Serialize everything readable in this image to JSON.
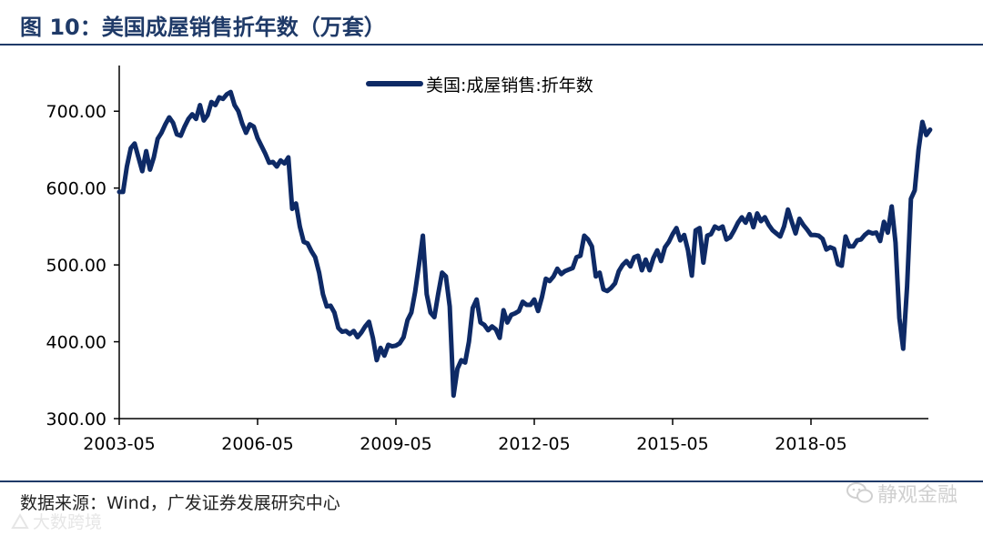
{
  "header": {
    "figure_title": "图 10：美国成屋销售折年数（万套）"
  },
  "footer": {
    "source": "数据来源：Wind，广发证券发展研究中心"
  },
  "watermarks": {
    "right_text": "静观金融",
    "right_icon": "wechat-icon",
    "left_text": "大数跨境",
    "left_icon": "logo-icon"
  },
  "colors": {
    "series": "#0e2a66",
    "title": "#1f3a68",
    "axis": "#000000"
  },
  "chart_data": {
    "type": "line",
    "title": "",
    "xlabel": "",
    "ylabel": "",
    "ylim": [
      300,
      750
    ],
    "y_ticks": [
      "300.00",
      "400.00",
      "500.00",
      "600.00",
      "700.00"
    ],
    "x_tick_labels": [
      "2003-05",
      "2006-05",
      "2009-05",
      "2012-05",
      "2015-05",
      "2018-05"
    ],
    "legend": "top-center",
    "grid": false,
    "series": [
      {
        "name": "美国:成屋销售:折年数",
        "x_start": "2003-05",
        "x_end": "2020-12",
        "frequency": "monthly",
        "points": [
          [
            "2003-05",
            595
          ],
          [
            "2003-06",
            595
          ],
          [
            "2003-07",
            628
          ],
          [
            "2003-08",
            652
          ],
          [
            "2003-09",
            658
          ],
          [
            "2003-10",
            640
          ],
          [
            "2003-11",
            622
          ],
          [
            "2003-12",
            648
          ],
          [
            "2004-01",
            624
          ],
          [
            "2004-02",
            640
          ],
          [
            "2004-03",
            664
          ],
          [
            "2004-04",
            672
          ],
          [
            "2004-05",
            683
          ],
          [
            "2004-06",
            692
          ],
          [
            "2004-07",
            685
          ],
          [
            "2004-08",
            670
          ],
          [
            "2004-09",
            668
          ],
          [
            "2004-10",
            680
          ],
          [
            "2004-11",
            690
          ],
          [
            "2004-12",
            696
          ],
          [
            "2005-01",
            690
          ],
          [
            "2005-02",
            708
          ],
          [
            "2005-03",
            688
          ],
          [
            "2005-04",
            695
          ],
          [
            "2005-05",
            712
          ],
          [
            "2005-06",
            708
          ],
          [
            "2005-07",
            718
          ],
          [
            "2005-08",
            716
          ],
          [
            "2005-09",
            722
          ],
          [
            "2005-10",
            725
          ],
          [
            "2005-11",
            708
          ],
          [
            "2005-12",
            700
          ],
          [
            "2006-01",
            684
          ],
          [
            "2006-02",
            672
          ],
          [
            "2006-03",
            683
          ],
          [
            "2006-04",
            680
          ],
          [
            "2006-05",
            665
          ],
          [
            "2006-06",
            655
          ],
          [
            "2006-07",
            645
          ],
          [
            "2006-08",
            633
          ],
          [
            "2006-09",
            634
          ],
          [
            "2006-10",
            628
          ],
          [
            "2006-11",
            636
          ],
          [
            "2006-12",
            632
          ],
          [
            "2007-01",
            640
          ],
          [
            "2007-02",
            573
          ],
          [
            "2007-03",
            580
          ],
          [
            "2007-04",
            550
          ],
          [
            "2007-05",
            530
          ],
          [
            "2007-06",
            528
          ],
          [
            "2007-07",
            518
          ],
          [
            "2007-08",
            510
          ],
          [
            "2007-09",
            490
          ],
          [
            "2007-10",
            462
          ],
          [
            "2007-11",
            446
          ],
          [
            "2007-12",
            447
          ],
          [
            "2008-01",
            438
          ],
          [
            "2008-02",
            418
          ],
          [
            "2008-03",
            413
          ],
          [
            "2008-04",
            414
          ],
          [
            "2008-05",
            410
          ],
          [
            "2008-06",
            414
          ],
          [
            "2008-07",
            406
          ],
          [
            "2008-08",
            412
          ],
          [
            "2008-09",
            420
          ],
          [
            "2008-10",
            426
          ],
          [
            "2008-11",
            405
          ],
          [
            "2008-12",
            376
          ],
          [
            "2009-01",
            392
          ],
          [
            "2009-02",
            382
          ],
          [
            "2009-03",
            396
          ],
          [
            "2009-04",
            394
          ],
          [
            "2009-05",
            395
          ],
          [
            "2009-06",
            398
          ],
          [
            "2009-07",
            406
          ],
          [
            "2009-08",
            428
          ],
          [
            "2009-09",
            438
          ],
          [
            "2009-10",
            465
          ],
          [
            "2009-11",
            500
          ],
          [
            "2009-12",
            538
          ],
          [
            "2010-01",
            462
          ],
          [
            "2010-02",
            438
          ],
          [
            "2010-03",
            432
          ],
          [
            "2010-04",
            462
          ],
          [
            "2010-05",
            490
          ],
          [
            "2010-06",
            485
          ],
          [
            "2010-07",
            446
          ],
          [
            "2010-08",
            330
          ],
          [
            "2010-09",
            365
          ],
          [
            "2010-10",
            376
          ],
          [
            "2010-11",
            373
          ],
          [
            "2010-12",
            400
          ],
          [
            "2011-01",
            444
          ],
          [
            "2011-02",
            455
          ],
          [
            "2011-03",
            425
          ],
          [
            "2011-04",
            422
          ],
          [
            "2011-05",
            415
          ],
          [
            "2011-06",
            420
          ],
          [
            "2011-07",
            416
          ],
          [
            "2011-08",
            405
          ],
          [
            "2011-09",
            441
          ],
          [
            "2011-10",
            425
          ],
          [
            "2011-11",
            435
          ],
          [
            "2011-12",
            437
          ],
          [
            "2012-01",
            440
          ],
          [
            "2012-02",
            452
          ],
          [
            "2012-03",
            448
          ],
          [
            "2012-04",
            448
          ],
          [
            "2012-05",
            455
          ],
          [
            "2012-06",
            440
          ],
          [
            "2012-07",
            458
          ],
          [
            "2012-08",
            482
          ],
          [
            "2012-09",
            479
          ],
          [
            "2012-10",
            485
          ],
          [
            "2012-11",
            495
          ],
          [
            "2012-12",
            488
          ],
          [
            "2013-01",
            492
          ],
          [
            "2013-02",
            494
          ],
          [
            "2013-03",
            496
          ],
          [
            "2013-04",
            510
          ],
          [
            "2013-05",
            512
          ],
          [
            "2013-06",
            538
          ],
          [
            "2013-07",
            533
          ],
          [
            "2013-08",
            524
          ],
          [
            "2013-09",
            485
          ],
          [
            "2013-10",
            490
          ],
          [
            "2013-11",
            468
          ],
          [
            "2013-12",
            466
          ],
          [
            "2014-01",
            470
          ],
          [
            "2014-02",
            476
          ],
          [
            "2014-03",
            492
          ],
          [
            "2014-04",
            500
          ],
          [
            "2014-05",
            505
          ],
          [
            "2014-06",
            498
          ],
          [
            "2014-07",
            510
          ],
          [
            "2014-08",
            512
          ],
          [
            "2014-09",
            493
          ],
          [
            "2014-10",
            507
          ],
          [
            "2014-11",
            493
          ],
          [
            "2014-12",
            509
          ],
          [
            "2015-01",
            519
          ],
          [
            "2015-02",
            505
          ],
          [
            "2015-03",
            523
          ],
          [
            "2015-04",
            530
          ],
          [
            "2015-05",
            540
          ],
          [
            "2015-06",
            548
          ],
          [
            "2015-07",
            532
          ],
          [
            "2015-08",
            539
          ],
          [
            "2015-09",
            519
          ],
          [
            "2015-10",
            486
          ],
          [
            "2015-11",
            545
          ],
          [
            "2015-12",
            548
          ],
          [
            "2016-01",
            503
          ],
          [
            "2016-02",
            538
          ],
          [
            "2016-03",
            540
          ],
          [
            "2016-04",
            550
          ],
          [
            "2016-05",
            547
          ],
          [
            "2016-06",
            550
          ],
          [
            "2016-07",
            533
          ],
          [
            "2016-08",
            536
          ],
          [
            "2016-09",
            545
          ],
          [
            "2016-10",
            555
          ],
          [
            "2016-11",
            562
          ],
          [
            "2016-12",
            555
          ],
          [
            "2017-01",
            566
          ],
          [
            "2017-02",
            549
          ],
          [
            "2017-03",
            567
          ],
          [
            "2017-04",
            557
          ],
          [
            "2017-05",
            562
          ],
          [
            "2017-06",
            552
          ],
          [
            "2017-07",
            545
          ],
          [
            "2017-08",
            541
          ],
          [
            "2017-09",
            537
          ],
          [
            "2017-10",
            550
          ],
          [
            "2017-11",
            572
          ],
          [
            "2017-12",
            556
          ],
          [
            "2018-01",
            541
          ],
          [
            "2018-02",
            560
          ],
          [
            "2018-03",
            552
          ],
          [
            "2018-04",
            546
          ],
          [
            "2018-05",
            539
          ],
          [
            "2018-06",
            539
          ],
          [
            "2018-07",
            538
          ],
          [
            "2018-08",
            534
          ],
          [
            "2018-09",
            520
          ],
          [
            "2018-10",
            523
          ],
          [
            "2018-11",
            521
          ],
          [
            "2018-12",
            501
          ],
          [
            "2019-01",
            499
          ],
          [
            "2019-02",
            537
          ],
          [
            "2019-03",
            524
          ],
          [
            "2019-04",
            524
          ],
          [
            "2019-05",
            532
          ],
          [
            "2019-06",
            533
          ],
          [
            "2019-07",
            539
          ],
          [
            "2019-08",
            543
          ],
          [
            "2019-09",
            541
          ],
          [
            "2019-10",
            542
          ],
          [
            "2019-11",
            531
          ],
          [
            "2019-12",
            556
          ],
          [
            "2020-01",
            542
          ],
          [
            "2020-02",
            576
          ],
          [
            "2020-03",
            529
          ],
          [
            "2020-04",
            431
          ],
          [
            "2020-05",
            391
          ],
          [
            "2020-06",
            472
          ],
          [
            "2020-07",
            586
          ],
          [
            "2020-08",
            597
          ],
          [
            "2020-09",
            650
          ],
          [
            "2020-10",
            686
          ],
          [
            "2020-11",
            669
          ],
          [
            "2020-12",
            676
          ]
        ]
      }
    ]
  }
}
